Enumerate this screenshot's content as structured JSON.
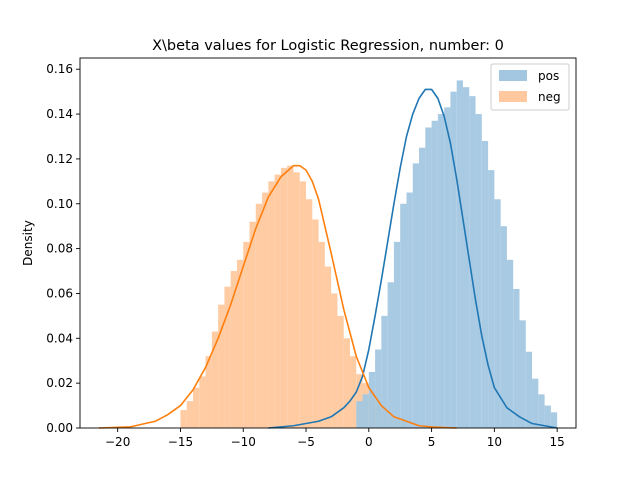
{
  "chart_data": {
    "type": "histogram-kde",
    "title": "X\\beta values for Logistic Regression, number: 0",
    "xlabel": "",
    "ylabel": "Density",
    "xlim": [
      -23,
      16.5
    ],
    "ylim": [
      0,
      0.165
    ],
    "xticks": [
      -20,
      -15,
      -10,
      -5,
      0,
      5,
      10,
      15
    ],
    "xtick_labels": [
      "−20",
      "−15",
      "−10",
      "−5",
      "0",
      "5",
      "10",
      "15"
    ],
    "yticks": [
      0,
      0.02,
      0.04,
      0.06,
      0.08,
      0.1,
      0.12,
      0.14,
      0.16
    ],
    "ytick_labels": [
      "0.00",
      "0.02",
      "0.04",
      "0.06",
      "0.08",
      "0.10",
      "0.12",
      "0.14",
      "0.16"
    ],
    "legend": {
      "placement": "top-right"
    },
    "bin_width": 0.5,
    "series": [
      {
        "name": "pos",
        "color": "#1f77b4",
        "bar_color": "#a3c7e1",
        "bin_start": -1,
        "bin_width": 0.5,
        "hist": [
          0.012,
          0.015,
          0.025,
          0.035,
          0.05,
          0.065,
          0.083,
          0.1,
          0.105,
          0.118,
          0.125,
          0.134,
          0.137,
          0.14,
          0.143,
          0.15,
          0.155,
          0.152,
          0.148,
          0.14,
          0.128,
          0.115,
          0.102,
          0.09,
          0.075,
          0.062,
          0.048,
          0.034,
          0.022,
          0.015,
          0.01,
          0.007
        ],
        "kde_x": [
          -8,
          -6,
          -4,
          -3,
          -2,
          -1.5,
          -1,
          -0.5,
          0,
          0.5,
          1,
          1.5,
          2,
          2.5,
          3,
          3.5,
          4,
          4.5,
          5,
          5.5,
          6,
          6.5,
          7,
          7.5,
          8,
          8.5,
          9,
          9.5,
          10,
          11,
          12,
          13,
          14,
          15
        ],
        "kde_y": [
          0.0,
          0.001,
          0.003,
          0.005,
          0.009,
          0.012,
          0.016,
          0.023,
          0.035,
          0.05,
          0.066,
          0.083,
          0.1,
          0.116,
          0.13,
          0.14,
          0.147,
          0.151,
          0.151,
          0.147,
          0.139,
          0.127,
          0.111,
          0.093,
          0.075,
          0.057,
          0.041,
          0.028,
          0.018,
          0.009,
          0.005,
          0.002,
          0.001,
          0.0
        ]
      },
      {
        "name": "neg",
        "color": "#ff7f0e",
        "bar_color": "#ffc89e",
        "bin_start": -15,
        "bin_width": 0.5,
        "hist": [
          0.008,
          0.012,
          0.018,
          0.023,
          0.032,
          0.043,
          0.055,
          0.063,
          0.07,
          0.075,
          0.083,
          0.092,
          0.1,
          0.105,
          0.11,
          0.113,
          0.116,
          0.117,
          0.114,
          0.11,
          0.102,
          0.093,
          0.083,
          0.072,
          0.06,
          0.05,
          0.04,
          0.032,
          0.024,
          0.02,
          0.016,
          0.012,
          0.008,
          0.006,
          0.004,
          0.003
        ],
        "kde_x": [
          -21.5,
          -19,
          -17,
          -16,
          -15,
          -14,
          -13,
          -12,
          -11,
          -10,
          -9,
          -8,
          -7,
          -6,
          -5.5,
          -5,
          -4.5,
          -4,
          -3,
          -2,
          -1,
          0,
          1,
          2,
          3,
          4,
          5,
          6,
          7
        ],
        "kde_y": [
          0.0,
          0.0005,
          0.003,
          0.006,
          0.01,
          0.017,
          0.027,
          0.04,
          0.055,
          0.072,
          0.089,
          0.103,
          0.112,
          0.117,
          0.117,
          0.115,
          0.11,
          0.102,
          0.078,
          0.053,
          0.032,
          0.018,
          0.01,
          0.005,
          0.003,
          0.001,
          0.0005,
          0.0002,
          0.0
        ]
      }
    ]
  }
}
